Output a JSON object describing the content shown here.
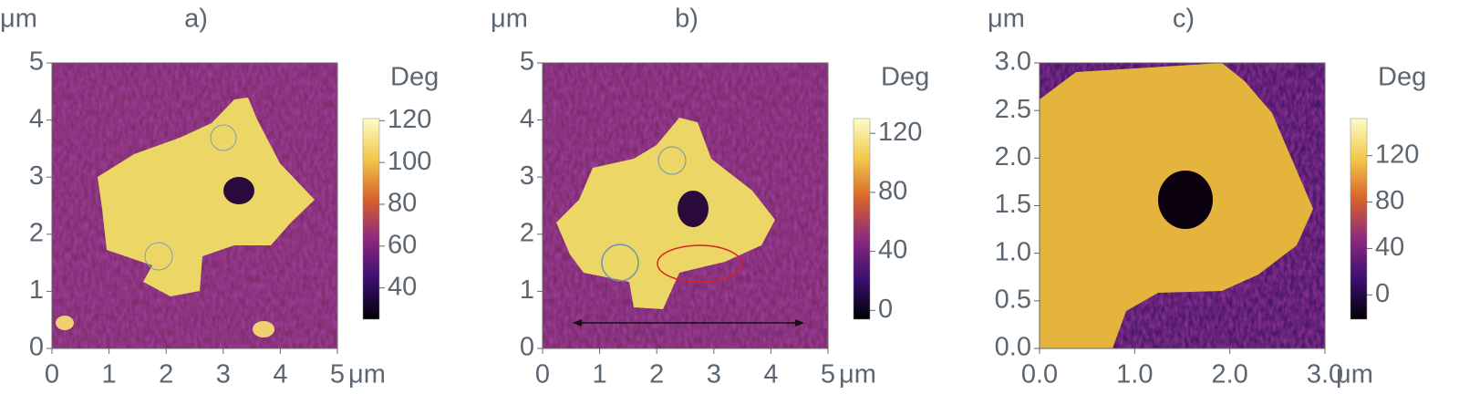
{
  "chart_data": [
    {
      "type": "heatmap",
      "title": "a)",
      "x_unit": "μm",
      "y_unit": "μm",
      "colorbar_label": "Deg",
      "xlim": [
        0,
        5
      ],
      "ylim": [
        0,
        5
      ],
      "xticks": [
        0,
        1,
        2,
        3,
        4,
        5
      ],
      "yticks": [
        0,
        1,
        2,
        3,
        4,
        5
      ],
      "clim": [
        25,
        121
      ],
      "cticks": [
        40,
        60,
        80,
        100,
        120
      ]
    },
    {
      "type": "heatmap",
      "title": "b)",
      "x_unit": "μm",
      "y_unit": "μm",
      "colorbar_label": "Deg",
      "xlim": [
        0,
        5
      ],
      "ylim": [
        0,
        5
      ],
      "xticks": [
        0,
        1,
        2,
        3,
        4,
        5
      ],
      "yticks": [
        0,
        1,
        2,
        3,
        4,
        5
      ],
      "clim": [
        -6,
        130
      ],
      "cticks": [
        0,
        40,
        80,
        120
      ]
    },
    {
      "type": "heatmap",
      "title": "c)",
      "x_unit": "μm",
      "y_unit": "μm",
      "colorbar_label": "Deg",
      "xlim": [
        0,
        3
      ],
      "ylim": [
        0,
        3
      ],
      "xticks": [
        {
          "value": 0,
          "label": "0.0"
        },
        {
          "value": 1,
          "label": "1.0"
        },
        {
          "value": 2,
          "label": "2.0"
        },
        {
          "value": 3,
          "label": "3.0"
        }
      ],
      "yticks": [
        {
          "value": 0,
          "label": "0.0"
        },
        {
          "value": 0.5,
          "label": "0.5"
        },
        {
          "value": 1,
          "label": "1.0"
        },
        {
          "value": 1.5,
          "label": "1.5"
        },
        {
          "value": 2,
          "label": "2.0"
        },
        {
          "value": 2.5,
          "label": "2.5"
        },
        {
          "value": 3,
          "label": "3.0"
        }
      ],
      "clim": [
        -21,
        152
      ],
      "cticks": [
        0,
        40,
        80,
        120
      ]
    }
  ]
}
